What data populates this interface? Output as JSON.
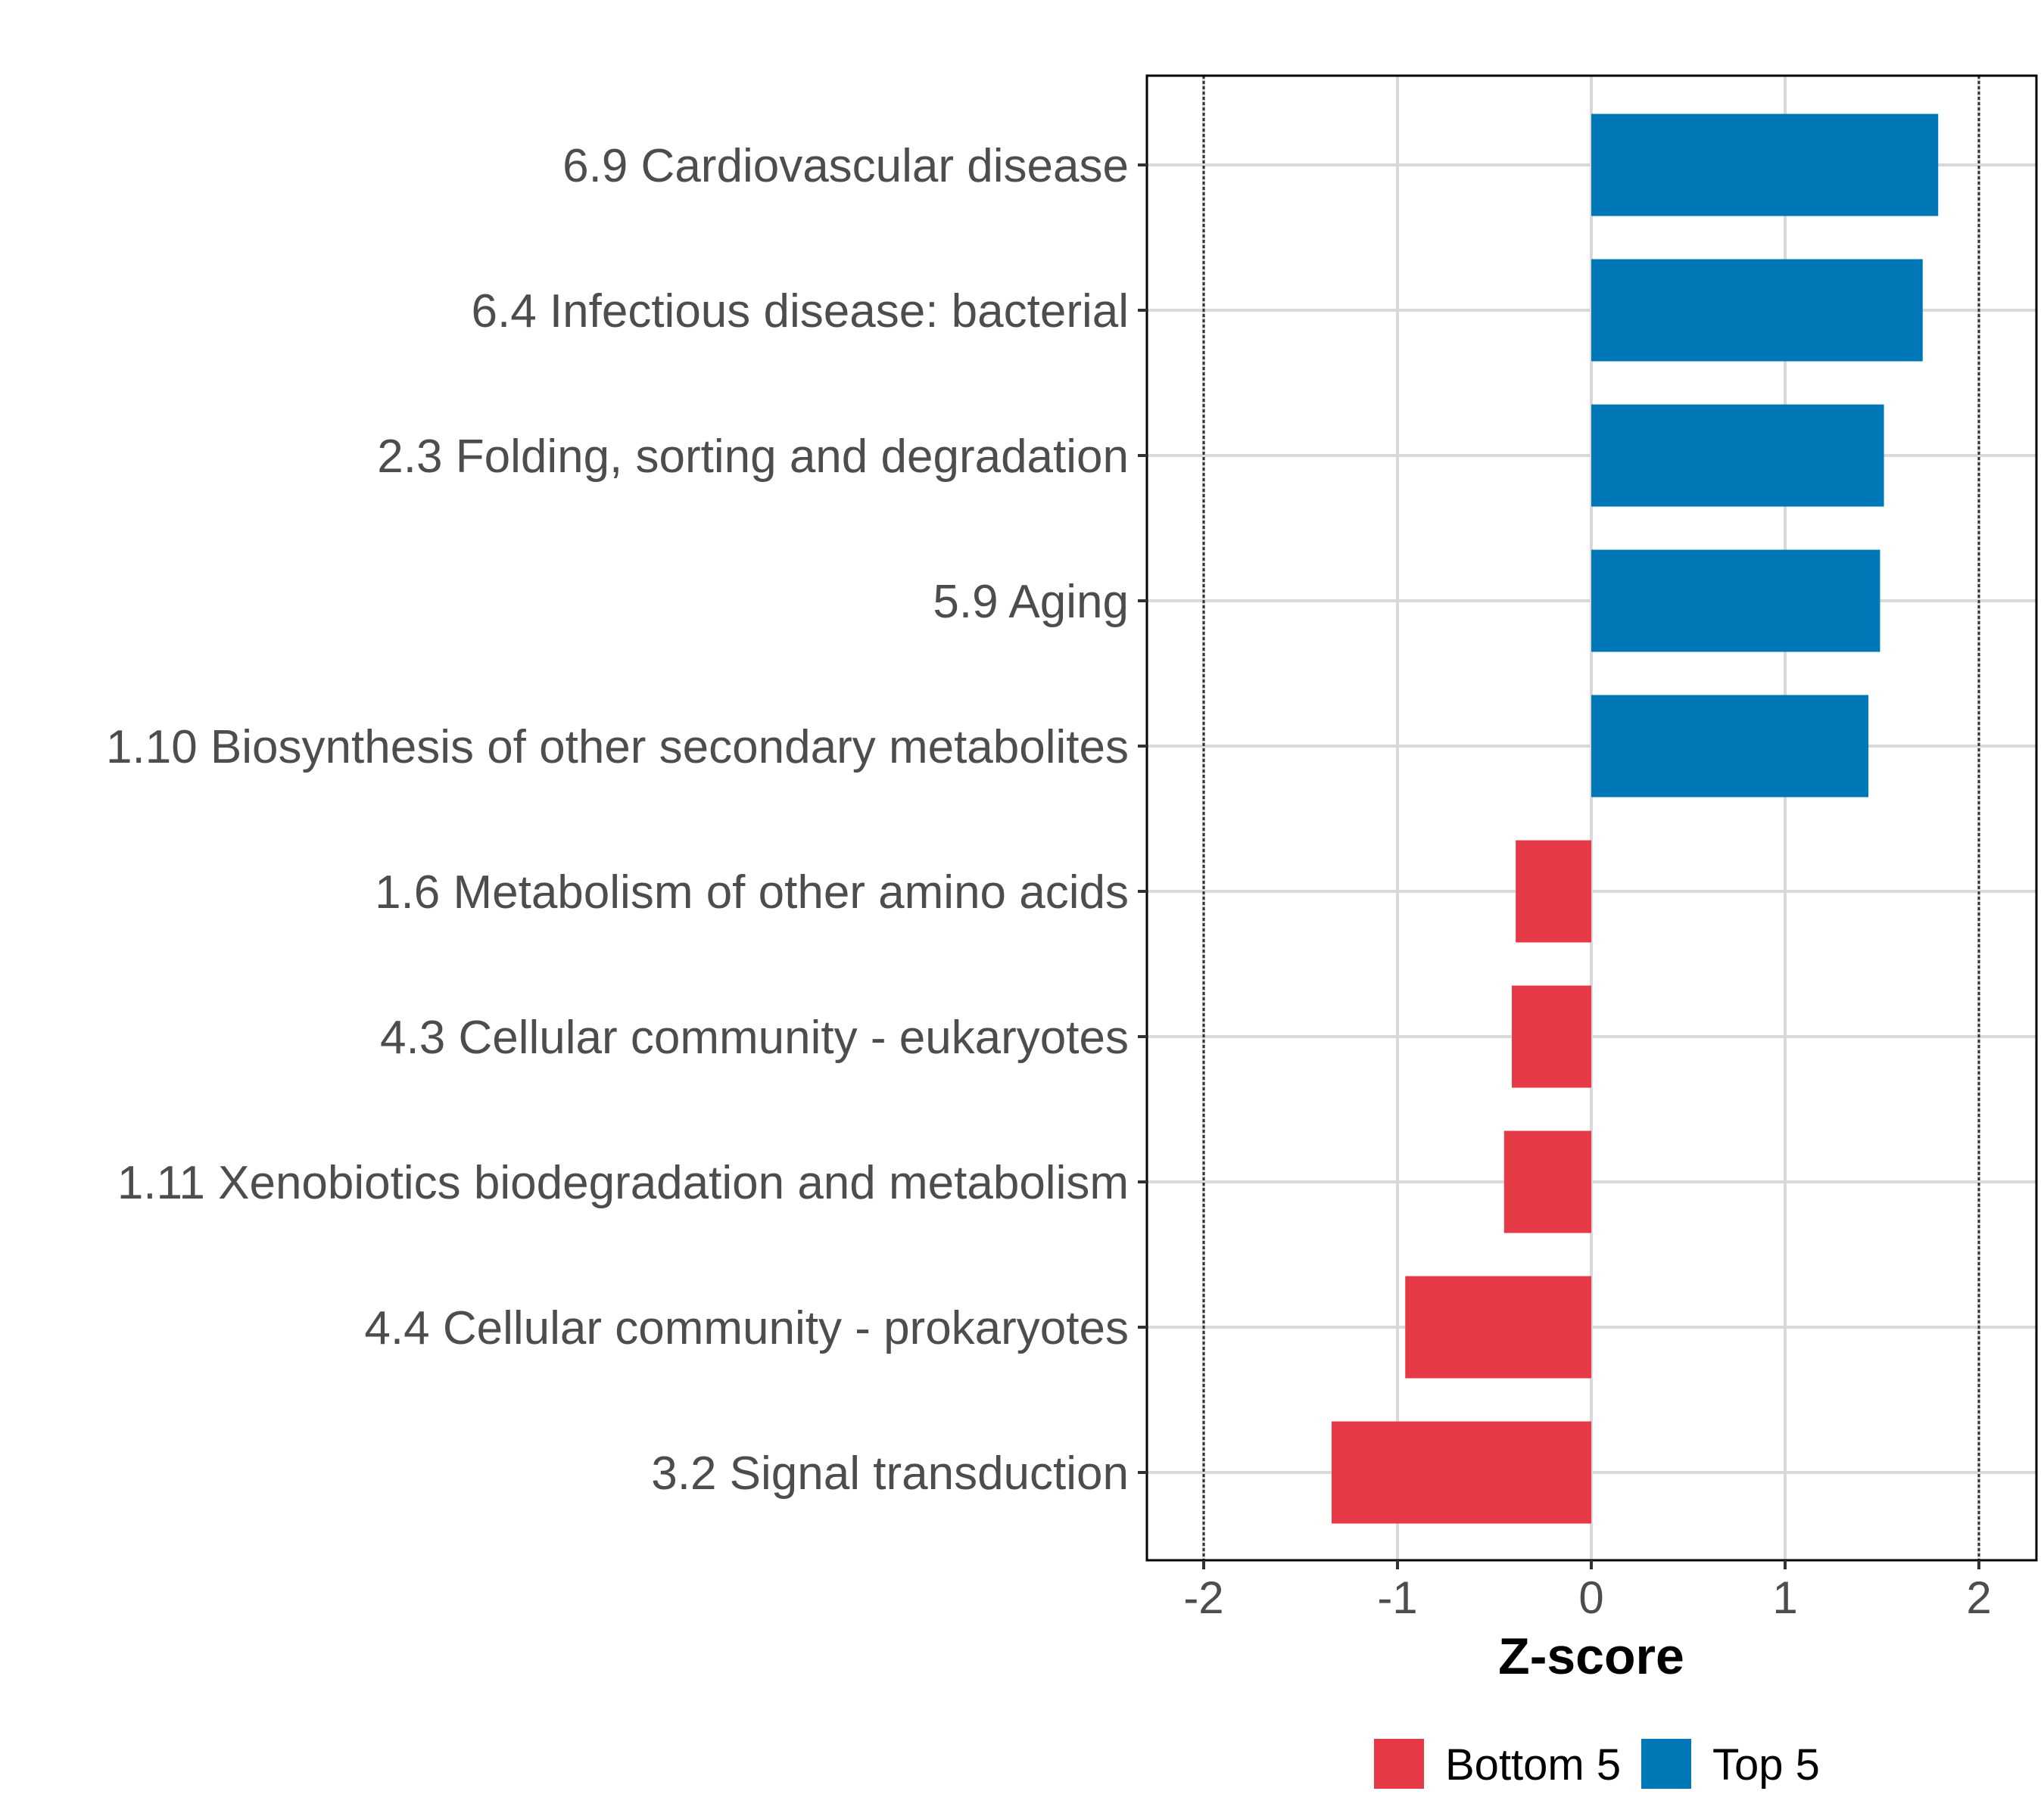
{
  "chart_data": {
    "type": "bar",
    "orientation": "horizontal",
    "categories": [
      "6.9 Cardiovascular disease",
      "6.4 Infectious disease: bacterial",
      "2.3 Folding, sorting and degradation",
      "5.9 Aging",
      "1.10 Biosynthesis of other secondary metabolites",
      "1.6 Metabolism of other amino acids",
      "4.3 Cellular community - eukaryotes",
      "1.11 Xenobiotics biodegradation and metabolism",
      "4.4 Cellular community - prokaryotes",
      "3.2 Signal transduction"
    ],
    "values": [
      1.79,
      1.71,
      1.51,
      1.49,
      1.43,
      -0.39,
      -0.41,
      -0.45,
      -0.96,
      -1.34
    ],
    "groups": [
      "Top 5",
      "Top 5",
      "Top 5",
      "Top 5",
      "Top 5",
      "Bottom 5",
      "Bottom 5",
      "Bottom 5",
      "Bottom 5",
      "Bottom 5"
    ],
    "xlabel": "Z-score",
    "ylabel": "",
    "xlim": [
      -2.3,
      2.3
    ],
    "xticks": [
      -2,
      -1,
      0,
      1,
      2
    ],
    "xtick_labels": [
      "-2",
      "-1",
      "0",
      "1",
      "2"
    ],
    "reference_lines": [
      -2,
      2
    ],
    "grid": true,
    "legend": {
      "position": "bottom",
      "entries": [
        {
          "label": "Bottom 5",
          "color": "#e63946"
        },
        {
          "label": "Top 5",
          "color": "#0077b6"
        }
      ]
    },
    "colors": {
      "Top 5": "#0077b6",
      "Bottom 5": "#e63946"
    }
  }
}
